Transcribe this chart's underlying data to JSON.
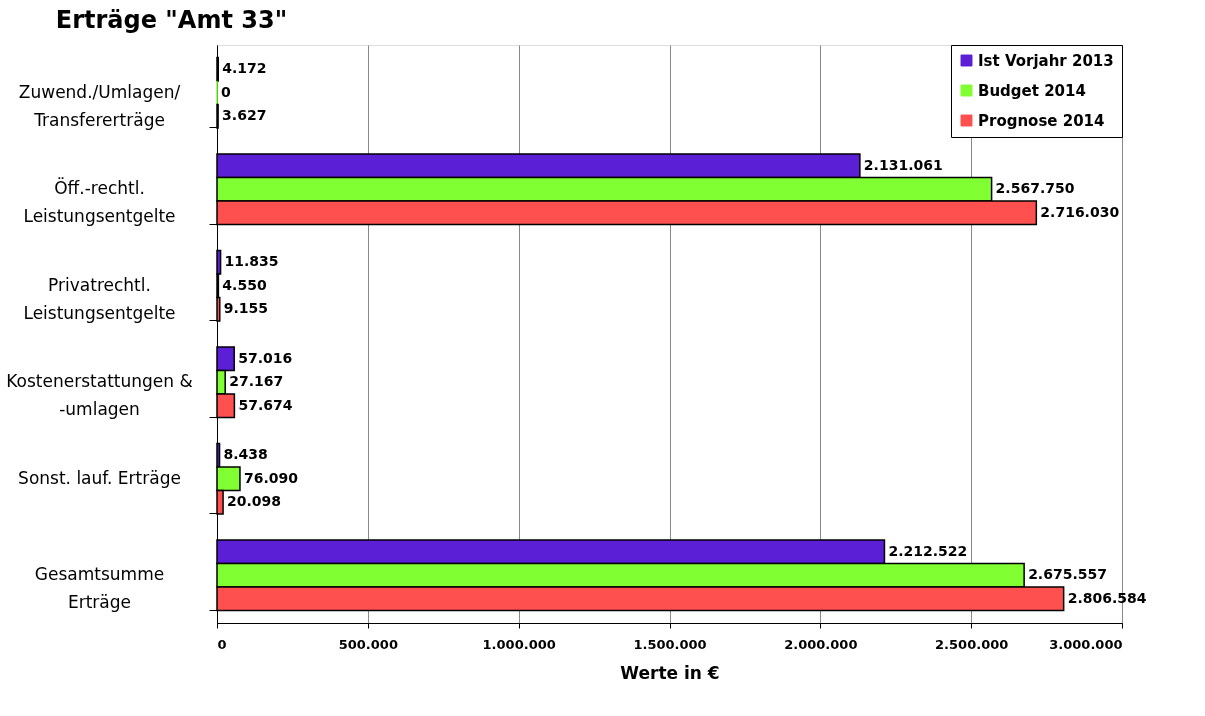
{
  "chart_data": {
    "type": "bar",
    "orientation": "horizontal",
    "title": "Erträge \"Amt 33\"",
    "xlabel": "Werte in €",
    "categories": [
      "Zuwend./Umlagen/\nTransfererträge",
      "Öff.-rechtl.\nLeistungsentgelte",
      "Privatrechtl.\nLeistungsentgelte",
      "Kostenerstattungen &\n-umlagen",
      "Sonst. lauf. Erträge",
      "Gesamtsumme\nErträge"
    ],
    "series": [
      {
        "name": "Ist Vorjahr 2013",
        "color": "#5b1fd6",
        "values": [
          4172,
          2131061,
          11835,
          57016,
          8438,
          2212522
        ],
        "value_labels": [
          "4.172",
          "2.131.061",
          "11.835",
          "57.016",
          "8.438",
          "2.212.522"
        ]
      },
      {
        "name": "Budget 2014",
        "color": "#80ff33",
        "values": [
          0,
          2567750,
          4550,
          27167,
          76090,
          2675557
        ],
        "value_labels": [
          "0",
          "2.567.750",
          "4.550",
          "27.167",
          "76.090",
          "2.675.557"
        ]
      },
      {
        "name": "Prognose 2014",
        "color": "#ff5050",
        "values": [
          3627,
          2716030,
          9155,
          57674,
          20098,
          2806584
        ],
        "value_labels": [
          "3.627",
          "2.716.030",
          "9.155",
          "57.674",
          "20.098",
          "2.806.584"
        ]
      }
    ],
    "xlim": [
      0,
      3000000
    ],
    "xticks": [
      0,
      {
        "value": 500000,
        "label": "500.000"
      },
      {
        "value": 1000000,
        "label": "1.000.000"
      },
      {
        "value": 1500000,
        "label": "1.500.000"
      },
      {
        "value": 2000000,
        "label": "2.000.000"
      },
      {
        "value": 2500000,
        "label": "2.500.000"
      },
      {
        "value": 3000000,
        "label": "3.000.000"
      }
    ],
    "grid": "x",
    "legend": "top right"
  }
}
